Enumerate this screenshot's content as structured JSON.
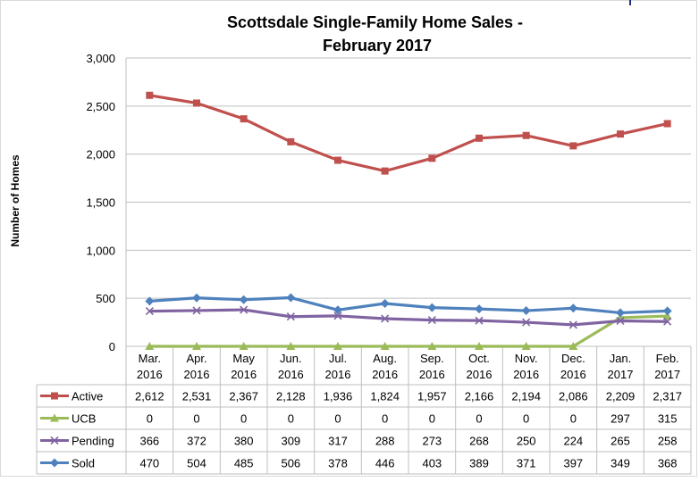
{
  "chart_data": {
    "type": "line",
    "title": [
      "Scottsdale Single-Family Home Sales -",
      "February 2017"
    ],
    "xlabel": "",
    "ylabel": "Number of Homes",
    "ylim": [
      0,
      3000
    ],
    "yticks": [
      0,
      500,
      1000,
      1500,
      2000,
      2500,
      3000
    ],
    "ytick_labels": [
      "0",
      "500",
      "1,000",
      "1,500",
      "2,000",
      "2,500",
      "3,000"
    ],
    "grid": true,
    "legend": "data-table",
    "categories": [
      [
        "Mar.",
        "2016"
      ],
      [
        "Apr.",
        "2016"
      ],
      [
        "May",
        "2016"
      ],
      [
        "Jun.",
        "2016"
      ],
      [
        "Jul.",
        "2016"
      ],
      [
        "Aug.",
        "2016"
      ],
      [
        "Sep.",
        "2016"
      ],
      [
        "Oct.",
        "2016"
      ],
      [
        "Nov.",
        "2016"
      ],
      [
        "Dec.",
        "2016"
      ],
      [
        "Jan.",
        "2017"
      ],
      [
        "Feb.",
        "2017"
      ]
    ],
    "series": [
      {
        "name": "Active",
        "color": "#c0504d",
        "marker": "square",
        "values": [
          2612,
          2531,
          2367,
          2128,
          1936,
          1824,
          1957,
          2166,
          2194,
          2086,
          2209,
          2317
        ],
        "labels": [
          "2,612",
          "2,531",
          "2,367",
          "2,128",
          "1,936",
          "1,824",
          "1,957",
          "2,166",
          "2,194",
          "2,086",
          "2,209",
          "2,317"
        ]
      },
      {
        "name": "UCB",
        "color": "#9bbb59",
        "marker": "triangle",
        "values": [
          0,
          0,
          0,
          0,
          0,
          0,
          0,
          0,
          0,
          0,
          297,
          315
        ],
        "labels": [
          "0",
          "0",
          "0",
          "0",
          "0",
          "0",
          "0",
          "0",
          "0",
          "0",
          "297",
          "315"
        ]
      },
      {
        "name": "Pending",
        "color": "#8064a2",
        "marker": "x",
        "values": [
          366,
          372,
          380,
          309,
          317,
          288,
          273,
          268,
          250,
          224,
          265,
          258
        ],
        "labels": [
          "366",
          "372",
          "380",
          "309",
          "317",
          "288",
          "273",
          "268",
          "250",
          "224",
          "265",
          "258"
        ]
      },
      {
        "name": "Sold",
        "color": "#4f81bd",
        "marker": "diamond",
        "values": [
          470,
          504,
          485,
          506,
          378,
          446,
          403,
          389,
          371,
          397,
          349,
          368
        ],
        "labels": [
          "470",
          "504",
          "485",
          "506",
          "378",
          "446",
          "403",
          "389",
          "371",
          "397",
          "349",
          "368"
        ]
      }
    ]
  }
}
